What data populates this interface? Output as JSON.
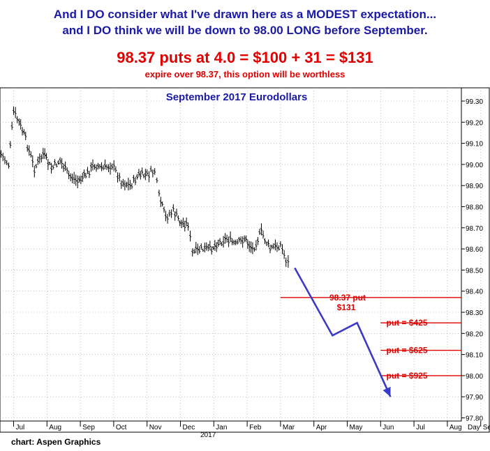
{
  "headline": {
    "line1": "And I DO consider what I've drawn here as a MODEST expectation...",
    "line2": "and I DO think we will be down to 98.00 LONG before September.",
    "calc": "98.37 puts at 4.0 = $100 + 31 = $131",
    "note": "expire over 98.37, this option will be worthless"
  },
  "footer": "chart: Aspen Graphics",
  "colors": {
    "blue_text": "#1a1aa8",
    "red": "#e00000",
    "projection": "#3a3ac8",
    "grid": "#9a9a9a",
    "bars": "#000000"
  },
  "chart_data": {
    "type": "bar-ohlc",
    "title": "September 2017 Eurodollars",
    "x_axis": {
      "months": [
        "Jul",
        "Aug",
        "Sep",
        "Oct",
        "Nov",
        "Dec",
        "Jan",
        "Feb",
        "Mar",
        "Apr",
        "May",
        "Jun",
        "Jul",
        "Aug",
        "Sep"
      ],
      "year_label": "2017",
      "unit_label": "Day"
    },
    "y_axis": {
      "ticks": [
        "99.30",
        "99.20",
        "99.10",
        "99.00",
        "98.90",
        "98.80",
        "98.70",
        "98.60",
        "98.50",
        "98.40",
        "98.30",
        "98.20",
        "98.10",
        "98.00",
        "97.90",
        "97.80"
      ],
      "ylim": [
        97.8,
        99.3
      ]
    },
    "grid": "dotted",
    "close_path": [
      [
        "Jun 20",
        99.05
      ],
      [
        "Jun 27",
        99.0
      ],
      [
        "Jul 1",
        99.25
      ],
      [
        "Jul 6",
        99.2
      ],
      [
        "Jul 12",
        99.12
      ],
      [
        "Jul 20",
        98.98
      ],
      [
        "Jul 28",
        99.05
      ],
      [
        "Aug 5",
        98.98
      ],
      [
        "Aug 13",
        99.02
      ],
      [
        "Aug 21",
        98.95
      ],
      [
        "Aug 29",
        98.92
      ],
      [
        "Sep 6",
        98.95
      ],
      [
        "Sep 14",
        99.0
      ],
      [
        "Sep 22",
        98.98
      ],
      [
        "Sep 30",
        99.0
      ],
      [
        "Oct 8",
        98.92
      ],
      [
        "Oct 16",
        98.9
      ],
      [
        "Oct 24",
        98.95
      ],
      [
        "Nov 1",
        98.95
      ],
      [
        "Nov 8",
        98.97
      ],
      [
        "Nov 12",
        98.85
      ],
      [
        "Nov 18",
        98.75
      ],
      [
        "Nov 25",
        98.78
      ],
      [
        "Dec 2",
        98.72
      ],
      [
        "Dec 8",
        98.72
      ],
      [
        "Dec 12",
        98.58
      ],
      [
        "Dec 20",
        98.6
      ],
      [
        "Dec 28",
        98.6
      ],
      [
        "Jan 5",
        98.63
      ],
      [
        "Jan 13",
        98.65
      ],
      [
        "Jan 21",
        98.62
      ],
      [
        "Jan 29",
        98.65
      ],
      [
        "Feb 6",
        98.6
      ],
      [
        "Feb 14",
        98.68
      ],
      [
        "Feb 22",
        98.6
      ],
      [
        "Mar 1",
        98.62
      ],
      [
        "Mar 6",
        98.55
      ],
      [
        "Mar 10",
        98.52
      ]
    ],
    "projection": [
      [
        "Mar 14",
        98.51
      ],
      [
        "Apr 18",
        98.19
      ],
      [
        "May 10",
        98.25
      ],
      [
        "Jun 10",
        97.9
      ]
    ],
    "levels": [
      {
        "value": 98.37,
        "label_line1": "98.37 put",
        "label_line2": "$131",
        "from": "Mar 1"
      },
      {
        "value": 98.25,
        "label_line1": "put = $425",
        "from": "Jun 1"
      },
      {
        "value": 98.12,
        "label_line1": "put = $625",
        "from": "Jun 1"
      },
      {
        "value": 98.0,
        "label_line1": "put = $925",
        "from": "Jun 1"
      }
    ]
  }
}
